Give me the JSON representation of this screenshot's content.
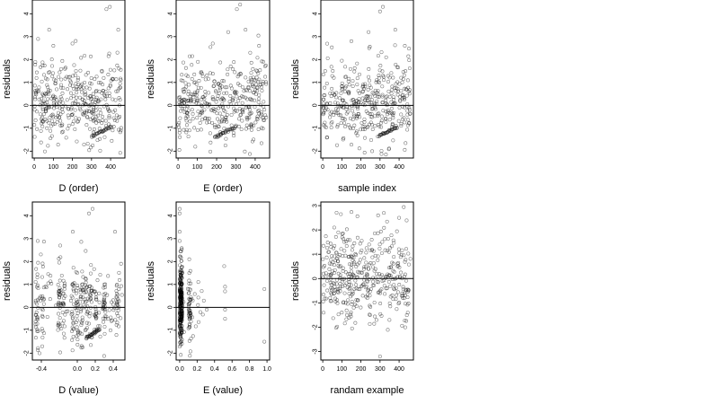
{
  "chart_data": [
    {
      "id": "d-order",
      "type": "scatter",
      "xlabel": "D (order)",
      "ylabel": "residuals",
      "xlim": [
        -10,
        475
      ],
      "ylim": [
        -2.3,
        4.6
      ],
      "xticks": [
        0,
        100,
        200,
        300,
        400
      ],
      "xtick_labels": [
        "0",
        "100",
        "200",
        "300",
        "400"
      ],
      "yticks": [
        -2,
        -1,
        0,
        1,
        2,
        3,
        4
      ],
      "ytick_labels": [
        "-2",
        "-1",
        "0",
        "1",
        "2",
        "3",
        "4"
      ],
      "hline": 0,
      "gen": {
        "n": 380,
        "xmin": 0,
        "xmax": 460,
        "mode": "index",
        "seed": 11,
        "cluster": {
          "xfrom": 300,
          "xto": 400,
          "yfrom": -1.35,
          "yto": -0.95
        }
      },
      "points": [
        [
          378,
          4.2
        ],
        [
          396,
          4.3
        ],
        [
          440,
          3.3
        ],
        [
          78,
          3.3
        ],
        [
          20,
          2.9
        ],
        [
          100,
          2.6
        ],
        [
          200,
          2.7
        ]
      ]
    },
    {
      "id": "e-order",
      "type": "scatter",
      "xlabel": "E (order)",
      "ylabel": "residuals",
      "xlim": [
        -10,
        475
      ],
      "ylim": [
        -2.3,
        4.6
      ],
      "xticks": [
        0,
        100,
        200,
        300,
        400
      ],
      "xtick_labels": [
        "0",
        "100",
        "200",
        "300",
        "400"
      ],
      "yticks": [
        -2,
        -1,
        0,
        1,
        2,
        3,
        4
      ],
      "ytick_labels": [
        "-2",
        "-1",
        "0",
        "1",
        "2",
        "3",
        "4"
      ],
      "hline": 0,
      "gen": {
        "n": 380,
        "xmin": 0,
        "xmax": 460,
        "mode": "index",
        "seed": 23,
        "cluster": {
          "xfrom": 190,
          "xto": 300,
          "yfrom": -1.4,
          "yto": -0.95
        }
      },
      "points": [
        [
          322,
          4.4
        ],
        [
          305,
          4.2
        ],
        [
          350,
          3.3
        ],
        [
          260,
          3.2
        ],
        [
          180,
          2.7
        ],
        [
          420,
          2.6
        ]
      ]
    },
    {
      "id": "sample-index",
      "type": "scatter",
      "xlabel": "sample index",
      "ylabel": "residuals",
      "xlim": [
        -10,
        475
      ],
      "ylim": [
        -2.3,
        4.6
      ],
      "xticks": [
        0,
        100,
        200,
        300,
        400
      ],
      "xtick_labels": [
        "0",
        "100",
        "200",
        "300",
        "400"
      ],
      "yticks": [
        -2,
        -1,
        0,
        1,
        2,
        3,
        4
      ],
      "ytick_labels": [
        "-2",
        "-1",
        "0",
        "1",
        "2",
        "3",
        "4"
      ],
      "hline": 0,
      "gen": {
        "n": 380,
        "xmin": 0,
        "xmax": 460,
        "mode": "index",
        "seed": 37,
        "cluster": {
          "xfrom": 290,
          "xto": 390,
          "yfrom": -1.35,
          "yto": -0.95
        }
      },
      "points": [
        [
          315,
          4.3
        ],
        [
          300,
          4.1
        ],
        [
          380,
          3.3
        ],
        [
          240,
          3.2
        ],
        [
          150,
          2.8
        ],
        [
          430,
          2.6
        ]
      ]
    },
    {
      "id": "d-value",
      "type": "scatter",
      "xlabel": "D (value)",
      "ylabel": "residuals",
      "xlim": [
        -0.5,
        0.53
      ],
      "ylim": [
        -2.3,
        4.6
      ],
      "xticks": [
        -0.4,
        0.0,
        0.2,
        0.4
      ],
      "xtick_labels": [
        "-0.4",
        "0.0",
        "0.2",
        "0.4"
      ],
      "yticks": [
        -2,
        -1,
        0,
        1,
        2,
        3,
        4
      ],
      "ytick_labels": [
        "-2",
        "-1",
        "0",
        "1",
        "2",
        "3",
        "4"
      ],
      "hline": 0,
      "gen": {
        "n": 360,
        "xmin": -0.47,
        "xmax": 0.5,
        "mode": "dvalue",
        "seed": 53,
        "cluster": {
          "xfrom": 0.1,
          "xto": 0.25,
          "yfrom": -1.35,
          "yto": -0.95
        }
      },
      "points": [
        [
          0.17,
          4.3
        ],
        [
          0.13,
          4.1
        ],
        [
          0.42,
          3.3
        ],
        [
          -0.05,
          3.3
        ],
        [
          -0.44,
          2.9
        ],
        [
          -0.19,
          2.7
        ]
      ]
    },
    {
      "id": "e-value",
      "type": "scatter",
      "xlabel": "E (value)",
      "ylabel": "residuals",
      "xlim": [
        -0.04,
        1.03
      ],
      "ylim": [
        -2.3,
        4.6
      ],
      "xticks": [
        0.0,
        0.2,
        0.4,
        0.6,
        0.8,
        1.0
      ],
      "xtick_labels": [
        "0.0",
        "0.2",
        "0.4",
        "0.6",
        "0.8",
        "1.0"
      ],
      "yticks": [
        -2,
        -1,
        0,
        1,
        2,
        3,
        4
      ],
      "ytick_labels": [
        "-2",
        "-1",
        "0",
        "1",
        "2",
        "3",
        "4"
      ],
      "hline": 0,
      "gen": {
        "n": 330,
        "xmin": 0.0,
        "xmax": 1.0,
        "mode": "evalue",
        "seed": 71
      },
      "points": [
        [
          0.0,
          4.3
        ],
        [
          0.0,
          4.1
        ],
        [
          0.0,
          3.3
        ],
        [
          0.0,
          2.9
        ],
        [
          0.11,
          2.1
        ],
        [
          0.11,
          1.5
        ],
        [
          0.11,
          0.8
        ],
        [
          0.11,
          -0.2
        ],
        [
          0.51,
          1.8
        ],
        [
          0.52,
          0.9
        ],
        [
          0.52,
          0.7
        ],
        [
          0.52,
          -0.1
        ],
        [
          0.52,
          -0.5
        ],
        [
          0.97,
          0.8
        ],
        [
          0.97,
          -1.5
        ],
        [
          0.31,
          -0.1
        ],
        [
          0.21,
          0.1
        ],
        [
          0.15,
          0.3
        ]
      ]
    },
    {
      "id": "random-example",
      "type": "scatter",
      "xlabel": "randam example",
      "ylabel": "residuals",
      "xlim": [
        -10,
        475
      ],
      "ylim": [
        -3.35,
        3.15
      ],
      "xticks": [
        0,
        100,
        200,
        300,
        400
      ],
      "xtick_labels": [
        "0",
        "100",
        "200",
        "300",
        "400"
      ],
      "yticks": [
        -3,
        -2,
        -1,
        0,
        1,
        2,
        3
      ],
      "ytick_labels": [
        "-3",
        "-2",
        "-1",
        "0",
        "1",
        "2",
        "3"
      ],
      "hline": 0,
      "gen": {
        "n": 400,
        "xmin": 0,
        "xmax": 460,
        "mode": "random",
        "seed": 97
      },
      "points": [
        [
          300,
          -3.2
        ],
        [
          95,
          2.65
        ],
        [
          320,
          2.7
        ],
        [
          290,
          2.6
        ],
        [
          60,
          2.1
        ],
        [
          400,
          2.5
        ]
      ]
    }
  ]
}
